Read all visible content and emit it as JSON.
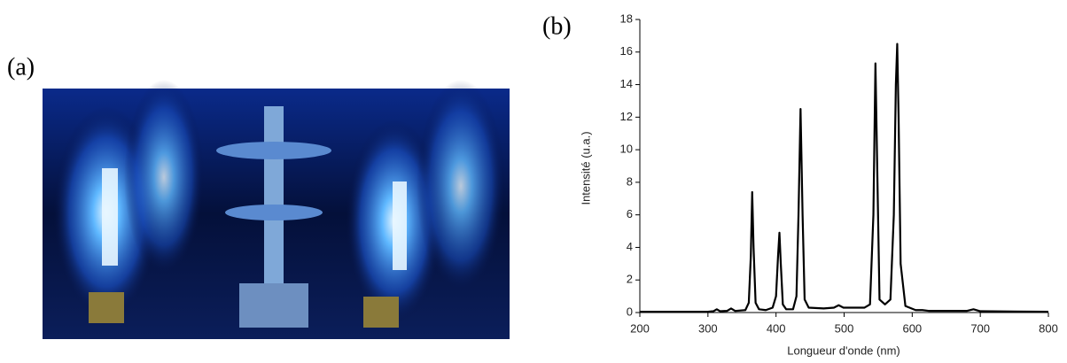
{
  "figure_labels": [
    "(a)",
    "(b)"
  ],
  "chart_data": {
    "type": "line",
    "x_label": "Longueur d'onde (nm)",
    "y_label": "Intensité (u.a.)",
    "x": [
      200,
      300,
      308,
      313,
      318,
      328,
      334,
      340,
      355,
      360,
      363,
      365,
      367,
      370,
      375,
      385,
      395,
      400,
      403,
      405,
      407,
      410,
      415,
      425,
      430,
      433,
      436,
      439,
      442,
      448,
      470,
      485,
      492,
      499,
      530,
      538,
      543,
      546,
      549,
      552,
      560,
      568,
      573,
      576,
      578,
      580,
      583,
      590,
      605,
      615,
      625,
      680,
      690,
      700,
      800
    ],
    "values": [
      0.05,
      0.05,
      0.08,
      0.2,
      0.08,
      0.1,
      0.25,
      0.1,
      0.15,
      0.6,
      3.5,
      7.4,
      4,
      0.6,
      0.2,
      0.15,
      0.3,
      1,
      3.5,
      4.9,
      3,
      0.5,
      0.2,
      0.2,
      1,
      6,
      12.5,
      6,
      0.8,
      0.3,
      0.25,
      0.3,
      0.45,
      0.3,
      0.3,
      0.5,
      6,
      15.3,
      8,
      0.8,
      0.5,
      0.8,
      6,
      14,
      16.5,
      12,
      3,
      0.4,
      0.15,
      0.15,
      0.1,
      0.1,
      0.2,
      0.08,
      0.05
    ],
    "color": "#000000",
    "xlim": [
      200,
      800
    ],
    "xticks": [
      200,
      300,
      400,
      500,
      600,
      700,
      800
    ],
    "ylim": [
      0,
      18
    ],
    "yticks": [
      0,
      2,
      4,
      6,
      8,
      10,
      12,
      14,
      16,
      18
    ]
  }
}
